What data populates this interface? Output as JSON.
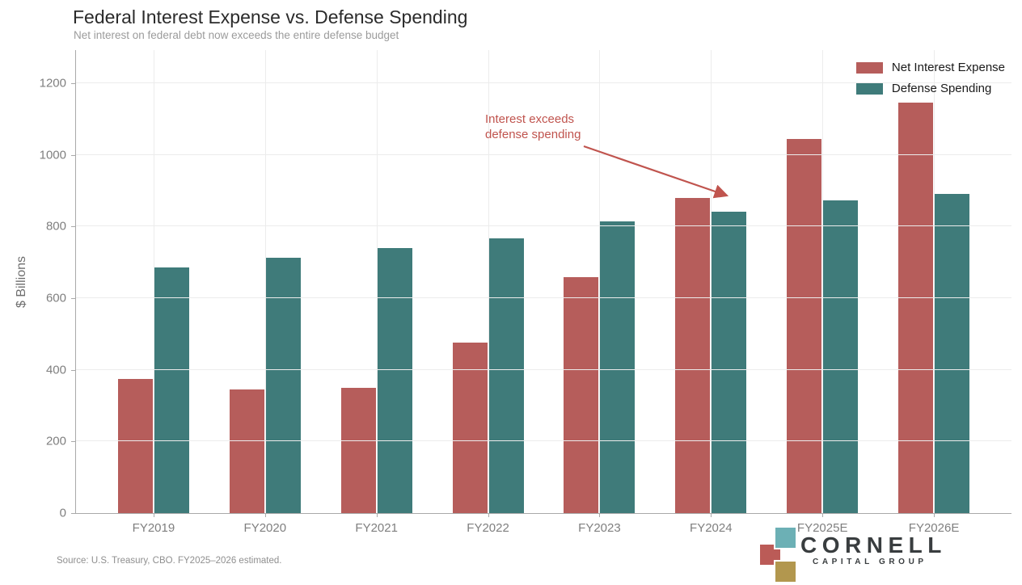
{
  "chart_data": {
    "type": "bar",
    "title": "Federal Interest Expense vs. Defense Spending",
    "subtitle": "Net interest on federal debt now exceeds the entire defense budget",
    "ylabel": "$ Billions",
    "ylim": [
      0,
      1200
    ],
    "yticks": [
      0,
      200,
      400,
      600,
      800,
      1000,
      1200
    ],
    "grid": true,
    "legend_position": "top-right",
    "categories": [
      "FY2019",
      "FY2020",
      "FY2021",
      "FY2022",
      "FY2023",
      "FY2024",
      "FY2025E",
      "FY2026E"
    ],
    "series": [
      {
        "name": "Net Interest Expense",
        "color": "#b65d5b",
        "values": [
          375,
          345,
          350,
          475,
          659,
          880,
          1045,
          1145
        ]
      },
      {
        "name": "Defense Spending",
        "color": "#3f7b7a",
        "values": [
          685,
          712,
          740,
          766,
          815,
          841,
          872,
          891
        ]
      }
    ],
    "annotation": {
      "lines": [
        "Interest exceeds",
        "defense spending"
      ],
      "color": "#c0544e"
    },
    "source_note": "Source: U.S. Treasury, CBO. FY2025–2026 estimated."
  },
  "logo": {
    "name": "CORNELL",
    "group": "CAPITAL GROUP",
    "square_colors": {
      "teal": "#6cb0b5",
      "red": "#bb5b57",
      "gold": "#b2974e"
    }
  }
}
